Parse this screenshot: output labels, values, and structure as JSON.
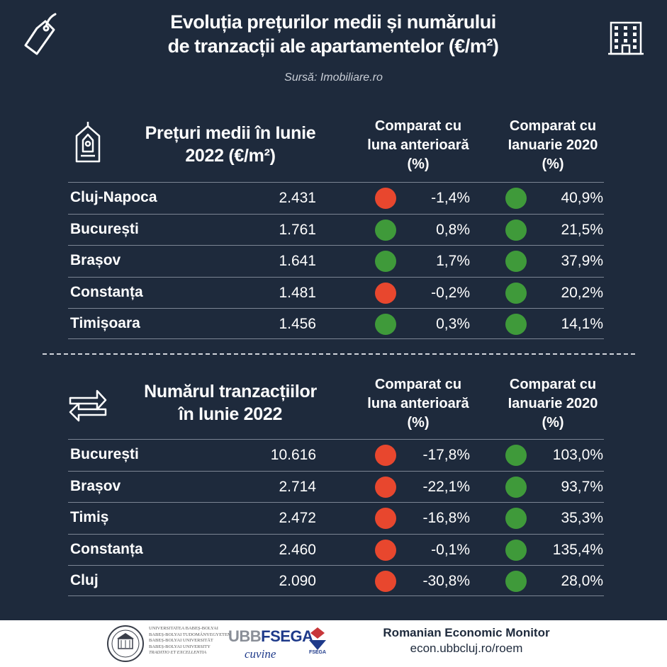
{
  "header": {
    "title_line1": "Evoluția prețurilor medii și numărului",
    "title_line2": "de tranzacții ale apartamentelor (€/m²)",
    "source": "Sursă: Imobiliare.ro"
  },
  "prices": {
    "title_line1": "Prețuri medii în Iunie",
    "title_line2": "2022 (€/m²)",
    "col1_line1": "Comparat cu",
    "col1_line2": "luna anterioară",
    "col1_line3": "(%)",
    "col2_line1": "Comparat cu",
    "col2_line2": "Ianuarie 2020",
    "col2_line3": "(%)",
    "rows": [
      {
        "name": "Cluj-Napoca",
        "value": "2.431",
        "mom": "-1,4%",
        "mom_status": "negative",
        "vs2020": "40,9%",
        "vs2020_status": "positive"
      },
      {
        "name": "București",
        "value": "1.761",
        "mom": "0,8%",
        "mom_status": "positive",
        "vs2020": "21,5%",
        "vs2020_status": "positive"
      },
      {
        "name": "Brașov",
        "value": "1.641",
        "mom": "1,7%",
        "mom_status": "positive",
        "vs2020": "37,9%",
        "vs2020_status": "positive"
      },
      {
        "name": "Constanța",
        "value": "1.481",
        "mom": "-0,2%",
        "mom_status": "negative",
        "vs2020": "20,2%",
        "vs2020_status": "positive"
      },
      {
        "name": "Timișoara",
        "value": "1.456",
        "mom": "0,3%",
        "mom_status": "positive",
        "vs2020": "14,1%",
        "vs2020_status": "positive"
      }
    ]
  },
  "transactions": {
    "title_line1": "Numărul tranzacțiilor",
    "title_line2": "în Iunie 2022",
    "col1_line1": "Comparat cu",
    "col1_line2": "luna anterioară",
    "col1_line3": "(%)",
    "col2_line1": "Comparat cu",
    "col2_line2": "Ianuarie 2020",
    "col2_line3": "(%)",
    "rows": [
      {
        "name": "București",
        "value": "10.616",
        "mom": "-17,8%",
        "mom_status": "negative",
        "vs2020": "103,0%",
        "vs2020_status": "positive"
      },
      {
        "name": "Brașov",
        "value": "2.714",
        "mom": "-22,1%",
        "mom_status": "negative",
        "vs2020": "93,7%",
        "vs2020_status": "positive"
      },
      {
        "name": "Timiș",
        "value": "2.472",
        "mom": "-16,8%",
        "mom_status": "negative",
        "vs2020": "35,3%",
        "vs2020_status": "positive"
      },
      {
        "name": "Constanța",
        "value": "2.460",
        "mom": "-0,1%",
        "mom_status": "negative",
        "vs2020": "135,4%",
        "vs2020_status": "positive"
      },
      {
        "name": "Cluj",
        "value": "2.090",
        "mom": "-30,8%",
        "mom_status": "negative",
        "vs2020": "28,0%",
        "vs2020_status": "positive"
      }
    ]
  },
  "colors": {
    "background": "#1e2a3c",
    "positive": "#3f9a3a",
    "negative": "#e8472e"
  },
  "icons": {
    "top_left": "price-tag-icon",
    "top_right": "building-icon",
    "prices_section": "house-icon",
    "transactions_section": "exchange-arrows-icon"
  },
  "footer": {
    "monitor_name": "Romanian Economic Monitor",
    "url": "econ.ubbcluj.ro/roem",
    "ubb_text": "UBB",
    "fsega_text": "FSEGA",
    "cuvine_text": "cuvine",
    "univ_lines": [
      "UNIVERSITATEA BABEȘ-BOLYAI",
      "BABEȘ-BOLYAI TUDOMÁNYEGYETEM",
      "BABEȘ-BOLYAI UNIVERSITÄT",
      "BABEȘ-BOLYAI UNIVERSITY",
      "TRADITIO ET EXCELLENTIA"
    ]
  }
}
